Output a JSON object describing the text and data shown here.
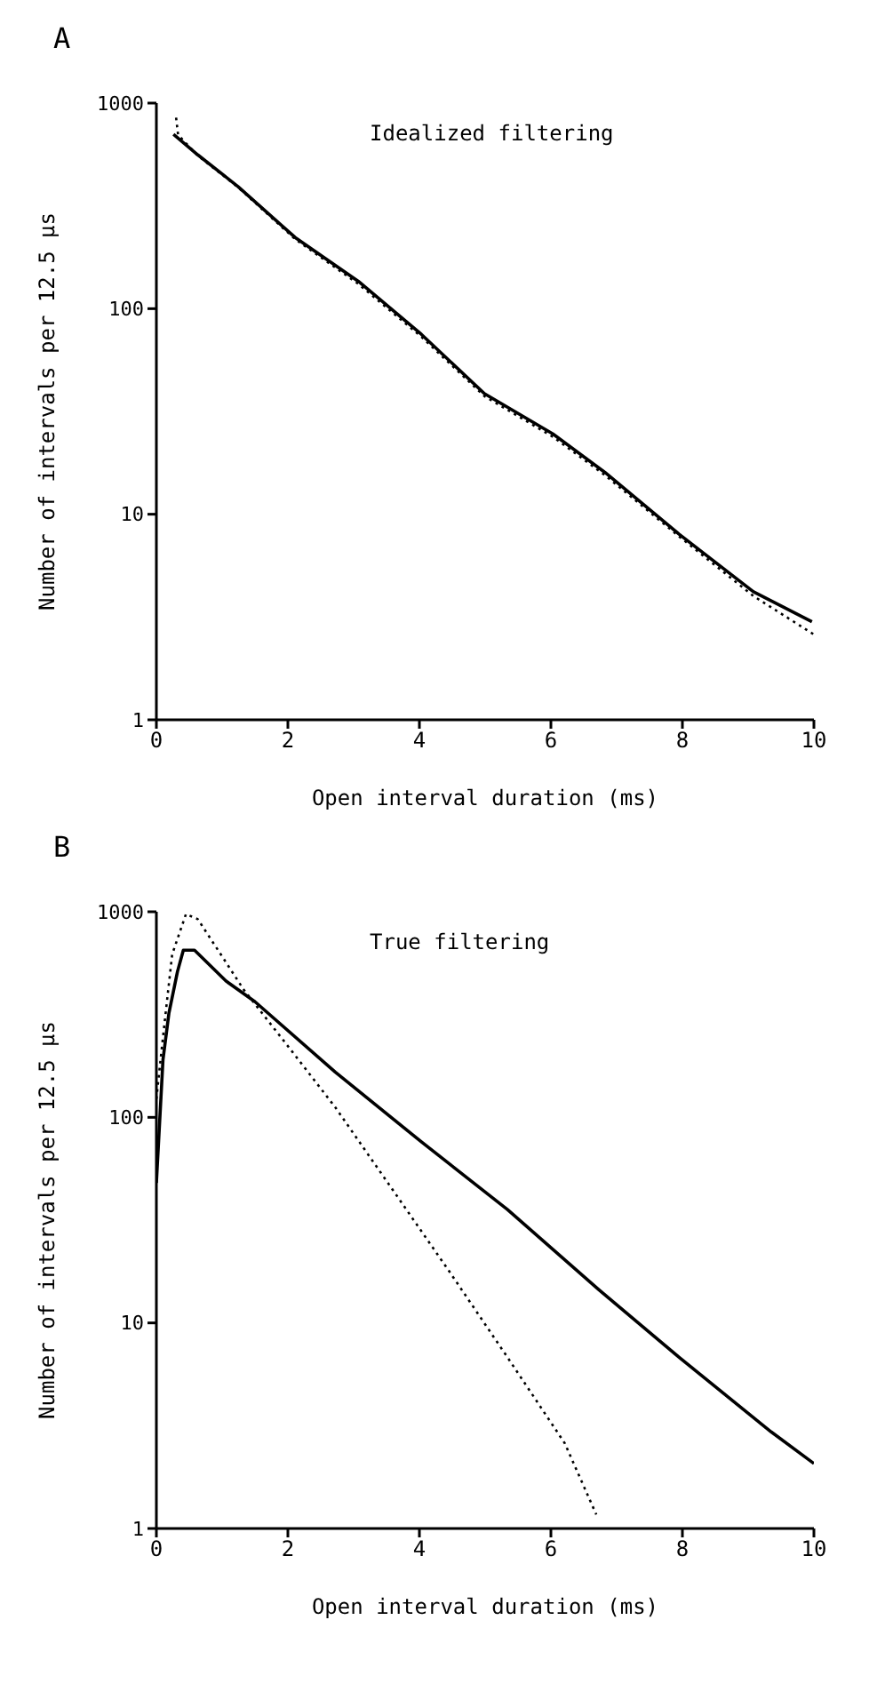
{
  "chart_data": [
    {
      "type": "line",
      "title": "A",
      "annotations": [
        "Idealized filtering"
      ],
      "xlabel": "Open interval duration (ms)",
      "ylabel": "Number of intervals per 12.5 μs",
      "xlim": [
        0,
        10
      ],
      "ylim": [
        1,
        1000
      ],
      "xticks": [
        0,
        2,
        4,
        6,
        8,
        10
      ],
      "yticks": [
        1,
        10,
        100,
        1000
      ],
      "log": "y",
      "marker": "none",
      "series": [
        {
          "color": "#000000",
          "line_style": "solid",
          "x": [
            0.26,
            0.63,
            1.24,
            2.11,
            3.07,
            4.03,
            4.99,
            6.03,
            6.82,
            7.95,
            9.08,
            9.97
          ],
          "values": [
            705,
            560,
            393,
            222,
            136,
            75,
            38.6,
            24.6,
            16,
            8,
            4.2,
            3.0
          ]
        },
        {
          "color": "#000000",
          "line_style": "dotted",
          "x": [
            0.3,
            0.33,
            0.63,
            1.24,
            2.11,
            3.07,
            4.03,
            4.99,
            6.03,
            6.82,
            7.95,
            9.08,
            10
          ],
          "values": [
            850,
            700,
            555,
            390,
            218,
            132,
            73,
            37.5,
            23.8,
            15.5,
            7.8,
            4.0,
            2.6
          ]
        }
      ]
    },
    {
      "type": "line",
      "title": "B",
      "annotations": [
        "True filtering"
      ],
      "xlabel": "Open interval duration (ms)",
      "ylabel": "Number of intervals per 12.5 μs",
      "xlim": [
        0,
        10
      ],
      "ylim": [
        1,
        1000
      ],
      "xticks": [
        0,
        2,
        4,
        6,
        8,
        10
      ],
      "yticks": [
        1,
        10,
        100,
        1000
      ],
      "log": "y",
      "marker": "none",
      "series": [
        {
          "color": "#000000",
          "line_style": "solid",
          "x": [
            0,
            0.1,
            0.19,
            0.32,
            0.41,
            0.58,
            1.06,
            1.5,
            2.72,
            4.03,
            5.34,
            6.73,
            7.95,
            9.35,
            10
          ],
          "values": [
            48,
            190,
            320,
            510,
            650,
            650,
            460,
            365,
            166,
            76,
            35.6,
            14.5,
            6.8,
            2.95,
            2.07
          ]
        },
        {
          "color": "#000000",
          "line_style": "dotted",
          "x": [
            0,
            0.1,
            0.24,
            0.45,
            0.63,
            0.98,
            1.33,
            2.02,
            2.72,
            3.59,
            4.46,
            5.34,
            6.21,
            6.69
          ],
          "values": [
            123,
            245,
            620,
            975,
            920,
            620,
            417,
            218,
            112,
            44.6,
            17.7,
            6.8,
            2.6,
            1.17
          ]
        }
      ]
    }
  ]
}
